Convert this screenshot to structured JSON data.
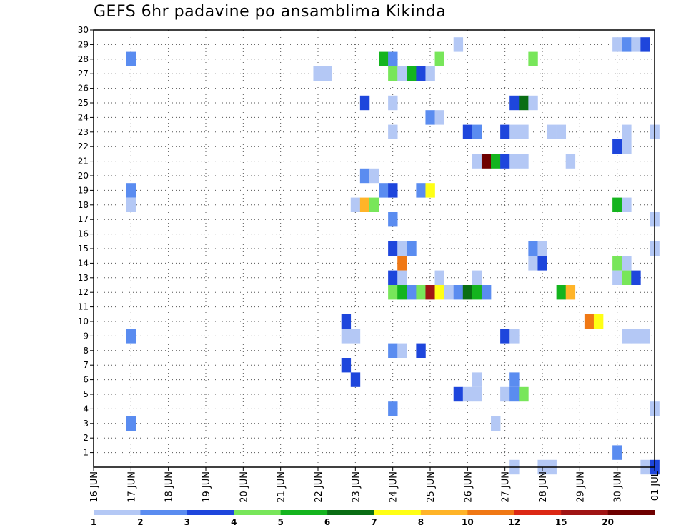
{
  "chart_data": {
    "type": "heatmap",
    "title": "GEFS 6hr padavine po ansamblima Kikinda",
    "xlabel": "",
    "ylabel": "",
    "x_ticks": [
      "16 JUN",
      "17 JUN",
      "18 JUN",
      "19 JUN",
      "20 JUN",
      "21 JUN",
      "22 JUN",
      "23 JUN",
      "24 JUN",
      "25 JUN",
      "26 JUN",
      "27 JUN",
      "28 JUN",
      "29 JUN",
      "30 JUN",
      "01 JUL"
    ],
    "y_ticks": [
      "1",
      "2",
      "3",
      "4",
      "5",
      "6",
      "7",
      "8",
      "9",
      "10",
      "11",
      "12",
      "13",
      "14",
      "15",
      "16",
      "17",
      "18",
      "19",
      "20",
      "21",
      "22",
      "23",
      "24",
      "25",
      "26",
      "27",
      "28",
      "29",
      "30"
    ],
    "xlim_days": [
      0,
      15
    ],
    "ylim": [
      0,
      30
    ],
    "grid": true,
    "colorbar": {
      "labels": [
        "1",
        "2",
        "3",
        "4",
        "5",
        "6",
        "7",
        "8",
        "10",
        "12",
        "15",
        "20"
      ],
      "colors": [
        "#b4c8f5",
        "#5a8cf0",
        "#1e46dc",
        "#78e65a",
        "#14b41e",
        "#0a6e14",
        "#ffff14",
        "#ffb428",
        "#f07814",
        "#dc2814",
        "#a01414",
        "#6e0000"
      ]
    },
    "cells": [
      {
        "member": 29,
        "day": 9.75,
        "level": 1
      },
      {
        "member": 29,
        "day": 14.0,
        "level": 1
      },
      {
        "member": 29,
        "day": 14.25,
        "level": 2
      },
      {
        "member": 29,
        "day": 14.5,
        "level": 1
      },
      {
        "member": 29,
        "day": 14.75,
        "level": 3
      },
      {
        "member": 28,
        "day": 1.0,
        "level": 2
      },
      {
        "member": 28,
        "day": 7.75,
        "level": 5
      },
      {
        "member": 28,
        "day": 8.0,
        "level": 2
      },
      {
        "member": 28,
        "day": 9.25,
        "level": 4
      },
      {
        "member": 28,
        "day": 11.75,
        "level": 4
      },
      {
        "member": 27,
        "day": 6.0,
        "level": 1
      },
      {
        "member": 27,
        "day": 6.25,
        "level": 1
      },
      {
        "member": 27,
        "day": 8.0,
        "level": 4
      },
      {
        "member": 27,
        "day": 8.25,
        "level": 1
      },
      {
        "member": 27,
        "day": 8.5,
        "level": 5
      },
      {
        "member": 27,
        "day": 8.75,
        "level": 3
      },
      {
        "member": 27,
        "day": 9.0,
        "level": 1
      },
      {
        "member": 25,
        "day": 7.25,
        "level": 3
      },
      {
        "member": 25,
        "day": 8.0,
        "level": 1
      },
      {
        "member": 25,
        "day": 11.25,
        "level": 3
      },
      {
        "member": 25,
        "day": 11.5,
        "level": 6
      },
      {
        "member": 25,
        "day": 11.75,
        "level": 1
      },
      {
        "member": 24,
        "day": 9.0,
        "level": 2
      },
      {
        "member": 24,
        "day": 9.25,
        "level": 1
      },
      {
        "member": 23,
        "day": 8.0,
        "level": 1
      },
      {
        "member": 23,
        "day": 10.0,
        "level": 3
      },
      {
        "member": 23,
        "day": 10.25,
        "level": 2
      },
      {
        "member": 23,
        "day": 11.0,
        "level": 3
      },
      {
        "member": 23,
        "day": 11.25,
        "level": 1
      },
      {
        "member": 23,
        "day": 11.5,
        "level": 1
      },
      {
        "member": 23,
        "day": 12.25,
        "level": 1
      },
      {
        "member": 23,
        "day": 12.5,
        "level": 1
      },
      {
        "member": 23,
        "day": 14.25,
        "level": 1
      },
      {
        "member": 23,
        "day": 15.0,
        "level": 1
      },
      {
        "member": 22,
        "day": 14.0,
        "level": 3
      },
      {
        "member": 22,
        "day": 14.25,
        "level": 1
      },
      {
        "member": 21,
        "day": 10.25,
        "level": 1
      },
      {
        "member": 21,
        "day": 10.5,
        "level": 12
      },
      {
        "member": 21,
        "day": 10.75,
        "level": 5
      },
      {
        "member": 21,
        "day": 11.0,
        "level": 3
      },
      {
        "member": 21,
        "day": 11.25,
        "level": 1
      },
      {
        "member": 21,
        "day": 11.5,
        "level": 1
      },
      {
        "member": 21,
        "day": 12.75,
        "level": 1
      },
      {
        "member": 20,
        "day": 7.25,
        "level": 2
      },
      {
        "member": 20,
        "day": 7.5,
        "level": 1
      },
      {
        "member": 19,
        "day": 1.0,
        "level": 2
      },
      {
        "member": 19,
        "day": 7.75,
        "level": 2
      },
      {
        "member": 19,
        "day": 8.0,
        "level": 3
      },
      {
        "member": 19,
        "day": 8.75,
        "level": 2
      },
      {
        "member": 19,
        "day": 9.0,
        "level": 7
      },
      {
        "member": 18,
        "day": 1.0,
        "level": 1
      },
      {
        "member": 18,
        "day": 7.0,
        "level": 1
      },
      {
        "member": 18,
        "day": 7.25,
        "level": 8
      },
      {
        "member": 18,
        "day": 7.5,
        "level": 4
      },
      {
        "member": 18,
        "day": 14.0,
        "level": 5
      },
      {
        "member": 18,
        "day": 14.25,
        "level": 1
      },
      {
        "member": 17,
        "day": 8.0,
        "level": 2
      },
      {
        "member": 17,
        "day": 15.0,
        "level": 1
      },
      {
        "member": 15,
        "day": 8.0,
        "level": 3
      },
      {
        "member": 15,
        "day": 8.25,
        "level": 1
      },
      {
        "member": 15,
        "day": 8.5,
        "level": 2
      },
      {
        "member": 15,
        "day": 11.75,
        "level": 2
      },
      {
        "member": 15,
        "day": 12.0,
        "level": 1
      },
      {
        "member": 15,
        "day": 15.0,
        "level": 1
      },
      {
        "member": 14,
        "day": 8.25,
        "level": 9
      },
      {
        "member": 14,
        "day": 11.75,
        "level": 1
      },
      {
        "member": 14,
        "day": 12.0,
        "level": 3
      },
      {
        "member": 14,
        "day": 14.0,
        "level": 4
      },
      {
        "member": 14,
        "day": 14.25,
        "level": 1
      },
      {
        "member": 13,
        "day": 8.0,
        "level": 3
      },
      {
        "member": 13,
        "day": 8.25,
        "level": 1
      },
      {
        "member": 13,
        "day": 9.25,
        "level": 1
      },
      {
        "member": 13,
        "day": 10.25,
        "level": 1
      },
      {
        "member": 13,
        "day": 14.0,
        "level": 1
      },
      {
        "member": 13,
        "day": 14.25,
        "level": 4
      },
      {
        "member": 13,
        "day": 14.5,
        "level": 3
      },
      {
        "member": 12,
        "day": 8.0,
        "level": 4
      },
      {
        "member": 12,
        "day": 8.25,
        "level": 5
      },
      {
        "member": 12,
        "day": 8.5,
        "level": 2
      },
      {
        "member": 12,
        "day": 8.75,
        "level": 4
      },
      {
        "member": 12,
        "day": 9.0,
        "level": 11
      },
      {
        "member": 12,
        "day": 9.25,
        "level": 7
      },
      {
        "member": 12,
        "day": 9.5,
        "level": 1
      },
      {
        "member": 12,
        "day": 9.75,
        "level": 2
      },
      {
        "member": 12,
        "day": 10.0,
        "level": 6
      },
      {
        "member": 12,
        "day": 10.25,
        "level": 5
      },
      {
        "member": 12,
        "day": 10.5,
        "level": 2
      },
      {
        "member": 12,
        "day": 12.5,
        "level": 5
      },
      {
        "member": 12,
        "day": 12.75,
        "level": 8
      },
      {
        "member": 10,
        "day": 6.75,
        "level": 3
      },
      {
        "member": 10,
        "day": 13.25,
        "level": 9
      },
      {
        "member": 10,
        "day": 13.5,
        "level": 7
      },
      {
        "member": 9,
        "day": 1.0,
        "level": 2
      },
      {
        "member": 9,
        "day": 6.75,
        "level": 1
      },
      {
        "member": 9,
        "day": 7.0,
        "level": 1
      },
      {
        "member": 9,
        "day": 11.0,
        "level": 3
      },
      {
        "member": 9,
        "day": 11.25,
        "level": 1
      },
      {
        "member": 9,
        "day": 14.25,
        "level": 1
      },
      {
        "member": 9,
        "day": 14.5,
        "level": 1
      },
      {
        "member": 9,
        "day": 14.75,
        "level": 1
      },
      {
        "member": 8,
        "day": 8.0,
        "level": 2
      },
      {
        "member": 8,
        "day": 8.25,
        "level": 1
      },
      {
        "member": 8,
        "day": 8.75,
        "level": 3
      },
      {
        "member": 7,
        "day": 6.75,
        "level": 3
      },
      {
        "member": 6,
        "day": 7.0,
        "level": 3
      },
      {
        "member": 6,
        "day": 10.25,
        "level": 1
      },
      {
        "member": 6,
        "day": 11.25,
        "level": 2
      },
      {
        "member": 5,
        "day": 9.75,
        "level": 3
      },
      {
        "member": 5,
        "day": 10.0,
        "level": 1
      },
      {
        "member": 5,
        "day": 10.25,
        "level": 1
      },
      {
        "member": 5,
        "day": 11.0,
        "level": 1
      },
      {
        "member": 5,
        "day": 11.25,
        "level": 2
      },
      {
        "member": 5,
        "day": 11.5,
        "level": 4
      },
      {
        "member": 4,
        "day": 8.0,
        "level": 2
      },
      {
        "member": 4,
        "day": 15.0,
        "level": 1
      },
      {
        "member": 3,
        "day": 1.0,
        "level": 2
      },
      {
        "member": 3,
        "day": 10.75,
        "level": 1
      },
      {
        "member": 1,
        "day": 14.0,
        "level": 2
      },
      {
        "member": 0,
        "day": 11.25,
        "level": 1
      },
      {
        "member": 0,
        "day": 12.0,
        "level": 1
      },
      {
        "member": 0,
        "day": 12.25,
        "level": 1
      },
      {
        "member": 0,
        "day": 14.75,
        "level": 1
      },
      {
        "member": 0,
        "day": 15.0,
        "level": 3
      }
    ]
  }
}
